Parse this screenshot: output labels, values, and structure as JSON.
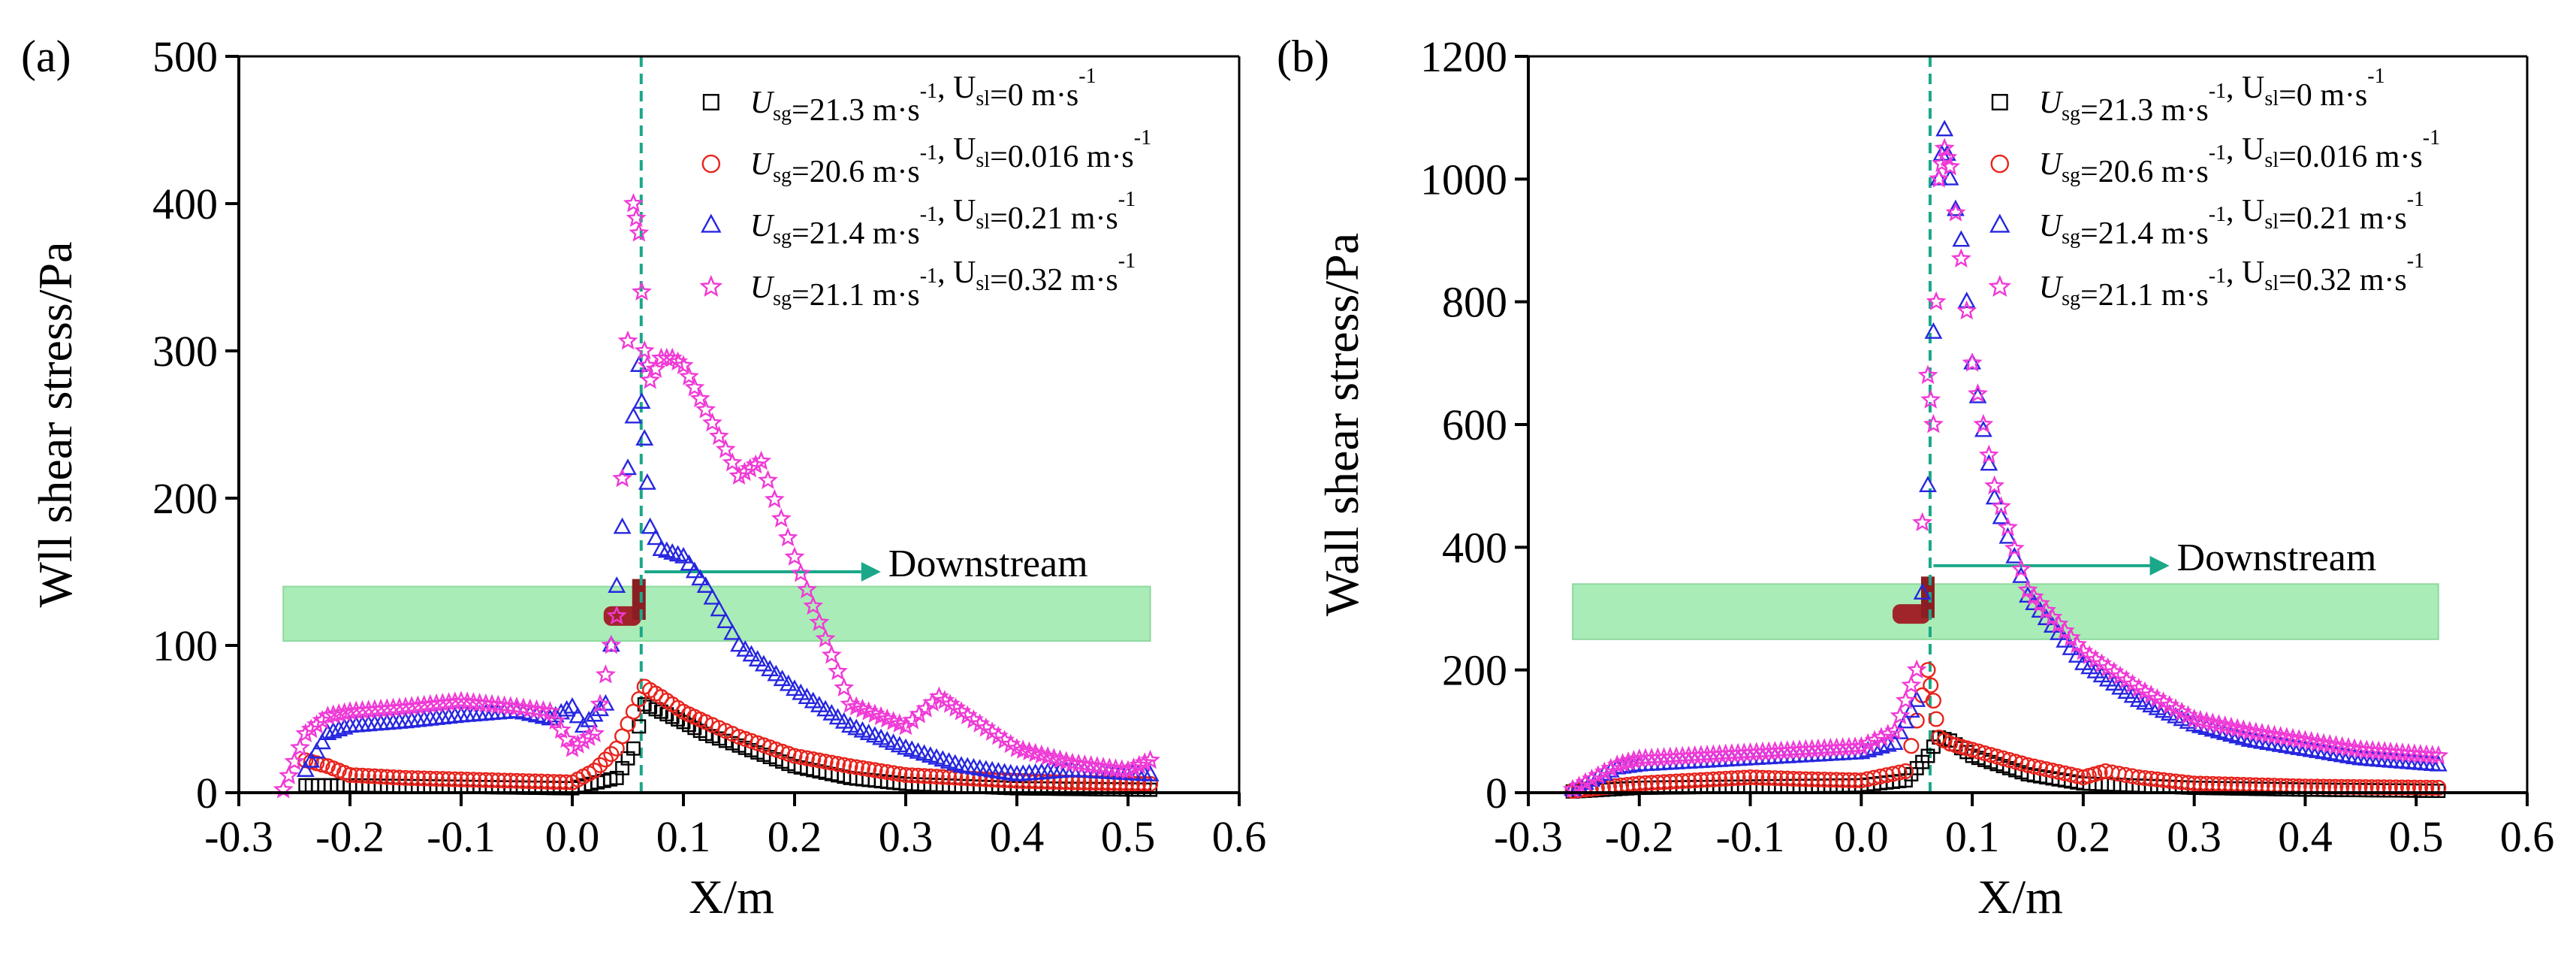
{
  "chart_data": [
    {
      "type": "scatter",
      "panel_label": "(a)",
      "xlabel": "X/m",
      "ylabel": "Wll shear stress/Pa",
      "xlim": [
        -0.3,
        0.6
      ],
      "ylim": [
        0,
        500
      ],
      "xticks": [
        "-0.3",
        "-0.2",
        "-0.1",
        "0.0",
        "0.1",
        "0.2",
        "0.3",
        "0.4",
        "0.5",
        "0.6"
      ],
      "yticks": [
        "0",
        "100",
        "200",
        "300",
        "400",
        "500"
      ],
      "legend_position": "top-right",
      "annotation": "Downstream",
      "series": [
        {
          "legend": {
            "ug": "U",
            "usg_sub": "sg",
            "ug_val": "=21.3 m·s",
            "exp": "-1",
            "sep": ", U",
            "usl_sub": "sl",
            "ul_val": "=0 m·s",
            "exp2": "-1"
          },
          "marker": "square",
          "color": "#000000",
          "x": [
            -0.24,
            -0.2,
            -0.1,
            0.0,
            0.04,
            0.055,
            0.065,
            0.08,
            0.1,
            0.12,
            0.15,
            0.2,
            0.25,
            0.3,
            0.4,
            0.52
          ],
          "y": [
            5,
            5,
            4,
            3,
            10,
            30,
            60,
            55,
            48,
            40,
            32,
            18,
            10,
            6,
            3,
            2
          ]
        },
        {
          "legend": {
            "ug": "U",
            "usg_sub": "sg",
            "ug_val": "=20.6 m·s",
            "exp": "-1",
            "sep": ", U",
            "usl_sub": "sl",
            "ul_val": "=0.016 m·s",
            "exp2": "-1"
          },
          "marker": "circle",
          "color": "#e8231c",
          "x": [
            -0.24,
            -0.22,
            -0.2,
            -0.15,
            -0.1,
            -0.05,
            0.0,
            0.02,
            0.04,
            0.055,
            0.065,
            0.08,
            0.1,
            0.12,
            0.15,
            0.2,
            0.25,
            0.3,
            0.35,
            0.4,
            0.45,
            0.52
          ],
          "y": [
            22,
            18,
            12,
            10,
            9,
            8,
            7,
            15,
            30,
            55,
            72,
            65,
            55,
            48,
            38,
            25,
            18,
            12,
            10,
            8,
            7,
            6
          ]
        },
        {
          "legend": {
            "ug": "U",
            "usg_sub": "sg",
            "ug_val": "=21.4 m·s",
            "exp": "-1",
            "sep": ", U",
            "usl_sub": "sl",
            "ul_val": "=0.21 m·s",
            "exp2": "-1"
          },
          "marker": "triangle",
          "color": "#2626e0",
          "x": [
            -0.24,
            -0.22,
            -0.2,
            -0.15,
            -0.1,
            -0.05,
            -0.02,
            0.0,
            0.01,
            0.03,
            0.05,
            0.06,
            0.065,
            0.07,
            0.08,
            0.1,
            0.12,
            0.15,
            0.2,
            0.25,
            0.3,
            0.35,
            0.4,
            0.45,
            0.52
          ],
          "y": [
            15,
            40,
            45,
            48,
            52,
            55,
            50,
            58,
            45,
            60,
            220,
            290,
            240,
            180,
            165,
            160,
            140,
            100,
            70,
            45,
            30,
            18,
            12,
            15,
            12
          ]
        },
        {
          "legend": {
            "ug": "U",
            "usg_sub": "sg",
            "ug_val": "=21.1 m·s",
            "exp": "-1",
            "sep": ", U",
            "usl_sub": "sl",
            "ul_val": "=0.32 m·s",
            "exp2": "-1"
          },
          "marker": "star",
          "color": "#f03ad6",
          "x": [
            -0.26,
            -0.24,
            -0.22,
            -0.2,
            -0.15,
            -0.1,
            -0.05,
            -0.02,
            0.0,
            0.02,
            0.04,
            0.055,
            0.06,
            0.065,
            0.07,
            0.08,
            0.09,
            0.1,
            0.12,
            0.15,
            0.17,
            0.2,
            0.25,
            0.3,
            0.33,
            0.35,
            0.4,
            0.45,
            0.5,
            0.52
          ],
          "y": [
            2,
            40,
            52,
            55,
            58,
            62,
            58,
            55,
            30,
            40,
            120,
            400,
            380,
            300,
            280,
            295,
            295,
            290,
            260,
            215,
            225,
            160,
            60,
            45,
            65,
            55,
            30,
            20,
            15,
            22
          ]
        }
      ]
    },
    {
      "type": "scatter",
      "panel_label": "(b)",
      "xlabel": "X/m",
      "ylabel": "Wall shear stress/Pa",
      "xlim": [
        -0.3,
        0.6
      ],
      "ylim": [
        0,
        1200
      ],
      "xticks": [
        "-0.3",
        "-0.2",
        "-0.1",
        "0.0",
        "0.1",
        "0.2",
        "0.3",
        "0.4",
        "0.5",
        "0.6"
      ],
      "yticks": [
        "0",
        "200",
        "400",
        "600",
        "800",
        "1000",
        "1200"
      ],
      "legend_position": "top-right",
      "annotation": "Downstream",
      "series": [
        {
          "legend": {
            "ug": "U",
            "usg_sub": "sg",
            "ug_val": "=21.3 m·s",
            "exp": "-1",
            "sep": ", U",
            "usl_sub": "sl",
            "ul_val": "=0 m·s",
            "exp2": "-1"
          },
          "marker": "square",
          "color": "#000000",
          "x": [
            -0.26,
            -0.2,
            -0.1,
            0.0,
            0.04,
            0.06,
            0.07,
            0.08,
            0.1,
            0.15,
            0.2,
            0.3,
            0.4,
            0.52
          ],
          "y": [
            2,
            8,
            10,
            12,
            20,
            60,
            90,
            85,
            60,
            30,
            15,
            8,
            5,
            3
          ]
        },
        {
          "legend": {
            "ug": "U",
            "usg_sub": "sg",
            "ug_val": "=20.6 m·s",
            "exp": "-1",
            "sep": ", U",
            "usl_sub": "sl",
            "ul_val": "=0.016 m·s",
            "exp2": "-1"
          },
          "marker": "circle",
          "color": "#e8231c",
          "x": [
            -0.26,
            -0.2,
            -0.15,
            -0.1,
            -0.05,
            0.0,
            0.04,
            0.06,
            0.065,
            0.07,
            0.08,
            0.1,
            0.15,
            0.2,
            0.22,
            0.25,
            0.3,
            0.4,
            0.52
          ],
          "y": [
            3,
            15,
            20,
            25,
            22,
            20,
            35,
            200,
            150,
            90,
            80,
            70,
            45,
            25,
            35,
            25,
            15,
            10,
            8
          ]
        },
        {
          "legend": {
            "ug": "U",
            "usg_sub": "sg",
            "ug_val": "=21.4 m·s",
            "exp": "-1",
            "sep": ", U",
            "usl_sub": "sl",
            "ul_val": "=0.21 m·s",
            "exp2": "-1"
          },
          "marker": "triangle",
          "color": "#2626e0",
          "x": [
            -0.26,
            -0.22,
            -0.2,
            -0.15,
            -0.1,
            -0.05,
            0.0,
            0.03,
            0.05,
            0.06,
            0.07,
            0.075,
            0.08,
            0.09,
            0.1,
            0.12,
            0.15,
            0.2,
            0.25,
            0.3,
            0.35,
            0.4,
            0.45,
            0.52
          ],
          "y": [
            5,
            40,
            45,
            50,
            55,
            60,
            65,
            80,
            150,
            500,
            1000,
            1080,
            1000,
            900,
            700,
            480,
            320,
            210,
            150,
            110,
            85,
            70,
            55,
            45
          ]
        },
        {
          "legend": {
            "ug": "U",
            "usg_sub": "sg",
            "ug_val": "=21.1 m·s",
            "exp": "-1",
            "sep": ", U",
            "usl_sub": "sl",
            "ul_val": "=0.32 m·s",
            "exp2": "-1"
          },
          "marker": "star",
          "color": "#f03ad6",
          "x": [
            -0.26,
            -0.22,
            -0.2,
            -0.15,
            -0.1,
            -0.05,
            0.0,
            0.03,
            0.05,
            0.06,
            0.065,
            0.07,
            0.075,
            0.08,
            0.09,
            0.1,
            0.12,
            0.15,
            0.2,
            0.25,
            0.3,
            0.35,
            0.4,
            0.45,
            0.52
          ],
          "y": [
            5,
            45,
            55,
            60,
            65,
            70,
            75,
            100,
            200,
            680,
            600,
            1000,
            1050,
            1020,
            870,
            700,
            500,
            330,
            230,
            170,
            120,
            100,
            85,
            70,
            60
          ]
        }
      ]
    }
  ]
}
